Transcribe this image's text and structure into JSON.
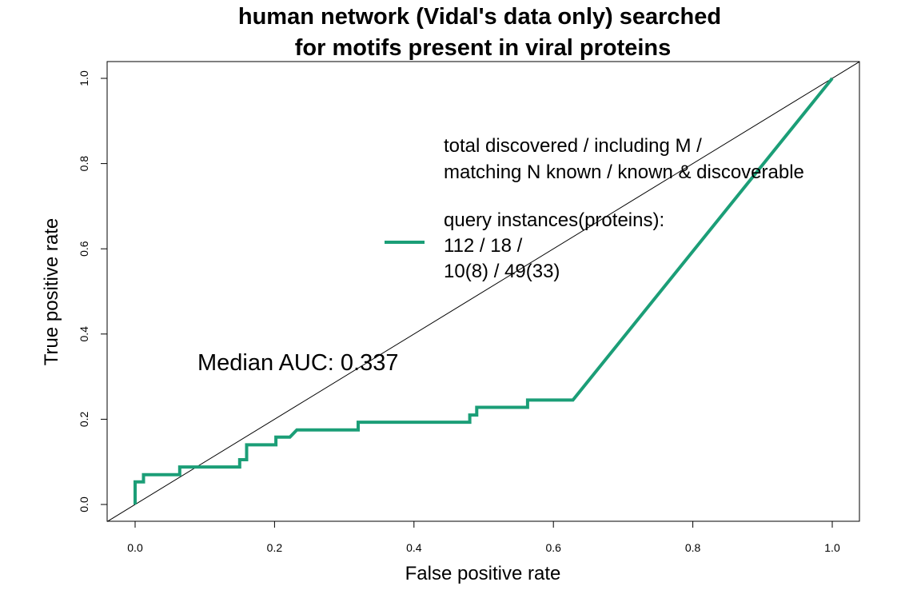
{
  "chart_data": {
    "type": "line",
    "title_lines": [
      "human network (Vidal's data only) searched",
      "for motifs present in viral proteins"
    ],
    "xlabel": "False positive rate",
    "ylabel": "True positive rate",
    "xlim": [
      0,
      1
    ],
    "ylim": [
      0,
      1
    ],
    "x_ticks": [
      "0.0",
      "0.2",
      "0.4",
      "0.6",
      "0.8",
      "1.0"
    ],
    "y_ticks": [
      "0.0",
      "0.2",
      "0.4",
      "0.6",
      "0.8",
      "1.0"
    ],
    "grid": false,
    "diagonal_reference": true,
    "series": [
      {
        "name": "ROC",
        "color": "#1b9e77",
        "x": [
          0,
          0,
          0.012,
          0.012,
          0.064,
          0.064,
          0.15,
          0.15,
          0.16,
          0.16,
          0.202,
          0.202,
          0.222,
          0.232,
          0.32,
          0.32,
          0.48,
          0.48,
          0.49,
          0.49,
          0.563,
          0.563,
          0.628,
          1.0
        ],
        "y": [
          0,
          0.053,
          0.053,
          0.07,
          0.07,
          0.088,
          0.088,
          0.105,
          0.105,
          0.14,
          0.14,
          0.158,
          0.158,
          0.175,
          0.175,
          0.193,
          0.193,
          0.21,
          0.21,
          0.228,
          0.228,
          0.245,
          0.245,
          1.0
        ]
      }
    ],
    "legend": {
      "position": "top-right",
      "header_lines": [
        "total discovered / including M /",
        "matching N known / known & discoverable"
      ],
      "entry_lines": [
        "query instances(proteins):",
        "112 / 18 /",
        "10(8) / 49(33)"
      ]
    },
    "annotation": "Median AUC: 0.337"
  }
}
